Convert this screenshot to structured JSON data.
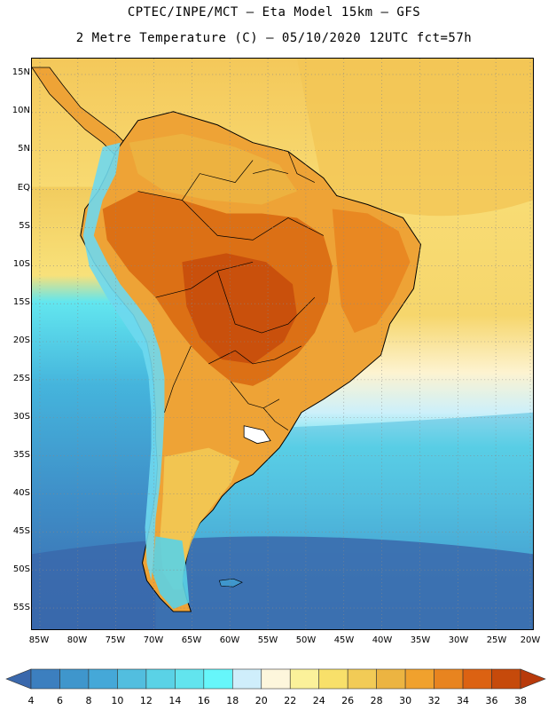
{
  "title_line1": "CPTEC/INPE/MCT –  Eta Model 15km – GFS",
  "title_line2": "2 Metre Temperature (C) – 05/10/2020 12UTC fct=57h",
  "lat_labels": [
    "15N",
    "10N",
    "5N",
    "EQ",
    "5S",
    "10S",
    "15S",
    "20S",
    "25S",
    "30S",
    "35S",
    "40S",
    "45S",
    "50S",
    "55S"
  ],
  "lon_labels": [
    "85W",
    "80W",
    "75W",
    "70W",
    "65W",
    "60W",
    "55W",
    "50W",
    "45W",
    "40W",
    "35W",
    "30W",
    "25W",
    "20W"
  ],
  "colorbar": {
    "levels": [
      "4",
      "6",
      "8",
      "10",
      "12",
      "14",
      "16",
      "18",
      "20",
      "22",
      "24",
      "26",
      "28",
      "30",
      "32",
      "34",
      "36",
      "38"
    ],
    "colors": [
      "#3a68ac",
      "#3c7fbf",
      "#3f96cc",
      "#45a8d8",
      "#52bedf",
      "#5ad2e6",
      "#62e4ee",
      "#66f6fa",
      "#cfeefb",
      "#fdf6dc",
      "#fbf19a",
      "#f8e06a",
      "#f2cb56",
      "#ecb441",
      "#f0a12d",
      "#e8841f",
      "#dc6212",
      "#c64a0b",
      "#b83a0b"
    ]
  },
  "colors": {
    "ocean_north": "#f6d873",
    "ocean_mid": "#f3cb5c",
    "ocean_cool": "#cdf0fa",
    "ocean_cold1": "#5ad3e5",
    "ocean_cold2": "#43a6d6",
    "ocean_cold3": "#3a70b0",
    "land_hot": "#d96a12",
    "land_warm": "#eea336",
    "andes": "#6ed8ee"
  }
}
